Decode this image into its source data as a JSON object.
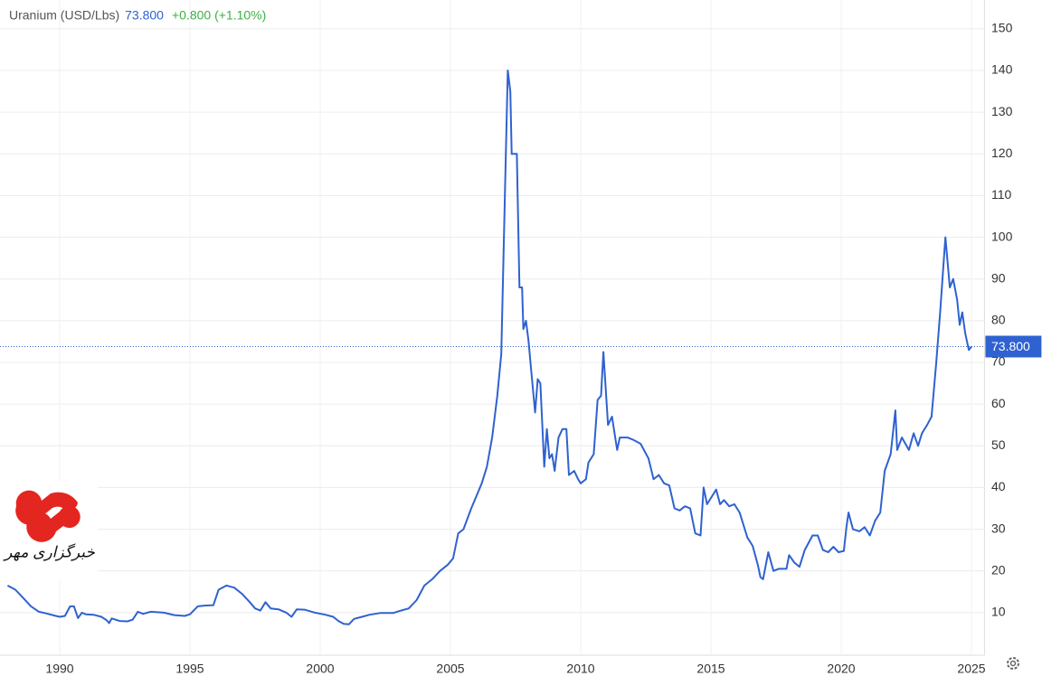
{
  "chart_data": {
    "type": "line",
    "title": "Uranium (USD/Lbs)",
    "last_price": {
      "value": 73.8,
      "label": "73.800"
    },
    "change": "+0.800 (+1.10%)",
    "watermark": "خبرگزاری مهر",
    "xlim": [
      1988,
      2025.5
    ],
    "xticks": [
      1990,
      1995,
      2000,
      2005,
      2010,
      2015,
      2020,
      2025
    ],
    "ylim": [
      0,
      155
    ],
    "yticks": [
      10,
      20,
      30,
      40,
      50,
      60,
      70,
      80,
      90,
      100,
      110,
      120,
      130,
      140,
      150
    ],
    "grid": true,
    "series": [
      {
        "name": "Uranium (USD/Lbs)",
        "color": "#2f62d0",
        "x": [
          1988.0,
          1988.3,
          1988.6,
          1988.9,
          1989.2,
          1989.5,
          1989.8,
          1990.0,
          1990.2,
          1990.4,
          1990.55,
          1990.7,
          1990.85,
          1991.0,
          1991.3,
          1991.6,
          1991.8,
          1991.9,
          1992.0,
          1992.3,
          1992.6,
          1992.8,
          1993.0,
          1993.2,
          1993.5,
          1994.0,
          1994.4,
          1994.8,
          1995.0,
          1995.3,
          1995.6,
          1995.9,
          1996.1,
          1996.4,
          1996.7,
          1997.0,
          1997.3,
          1997.5,
          1997.7,
          1997.9,
          1998.1,
          1998.4,
          1998.7,
          1998.9,
          1999.1,
          1999.4,
          1999.8,
          2000.2,
          2000.5,
          2000.7,
          2000.9,
          2001.1,
          2001.3,
          2001.6,
          2001.9,
          2002.3,
          2002.8,
          2003.1,
          2003.4,
          2003.7,
          2004.0,
          2004.3,
          2004.6,
          2004.9,
          2005.1,
          2005.3,
          2005.5,
          2005.8,
          2006.0,
          2006.2,
          2006.4,
          2006.6,
          2006.8,
          2006.95,
          2007.1,
          2007.2,
          2007.3,
          2007.35,
          2007.55,
          2007.65,
          2007.75,
          2007.8,
          2007.9,
          2008.0,
          2008.1,
          2008.25,
          2008.35,
          2008.45,
          2008.6,
          2008.7,
          2008.8,
          2008.9,
          2009.0,
          2009.15,
          2009.3,
          2009.45,
          2009.55,
          2009.75,
          2009.9,
          2010.0,
          2010.2,
          2010.3,
          2010.5,
          2010.65,
          2010.78,
          2010.87,
          2011.05,
          2011.2,
          2011.4,
          2011.5,
          2011.8,
          2012.0,
          2012.3,
          2012.6,
          2012.8,
          2013.0,
          2013.2,
          2013.4,
          2013.6,
          2013.8,
          2014.0,
          2014.2,
          2014.4,
          2014.6,
          2014.72,
          2014.85,
          2015.0,
          2015.2,
          2015.35,
          2015.5,
          2015.7,
          2015.9,
          2016.1,
          2016.4,
          2016.6,
          2016.8,
          2016.9,
          2017.0,
          2017.2,
          2017.4,
          2017.6,
          2017.9,
          2018.0,
          2018.2,
          2018.4,
          2018.6,
          2018.9,
          2019.1,
          2019.3,
          2019.5,
          2019.7,
          2019.9,
          2020.1,
          2020.2,
          2020.28,
          2020.45,
          2020.7,
          2020.9,
          2021.1,
          2021.3,
          2021.5,
          2021.67,
          2021.9,
          2022.08,
          2022.15,
          2022.33,
          2022.6,
          2022.78,
          2022.95,
          2023.1,
          2023.3,
          2023.47,
          2023.65,
          2023.8,
          2024.0,
          2024.17,
          2024.3,
          2024.45,
          2024.55,
          2024.65,
          2024.76,
          2024.9,
          2025.0
        ],
        "values": [
          16.5,
          15.5,
          13.5,
          11.5,
          10.2,
          9.8,
          9.3,
          9.0,
          9.2,
          11.5,
          11.5,
          8.7,
          10.0,
          9.6,
          9.5,
          9.0,
          8.2,
          7.5,
          8.6,
          8.0,
          7.9,
          8.3,
          10.2,
          9.7,
          10.2,
          10.0,
          9.4,
          9.2,
          9.6,
          11.5,
          11.7,
          11.8,
          15.5,
          16.5,
          16.0,
          14.5,
          12.5,
          11.0,
          10.5,
          12.5,
          11.0,
          10.8,
          10.0,
          9.0,
          10.8,
          10.7,
          10.0,
          9.5,
          9.0,
          8.0,
          7.3,
          7.2,
          8.5,
          9.0,
          9.5,
          9.9,
          9.9,
          10.5,
          11.0,
          13.0,
          16.5,
          18.0,
          20.0,
          21.5,
          23.0,
          29.0,
          30.0,
          35.0,
          38.0,
          41.0,
          45.0,
          52.0,
          62.0,
          72.0,
          113.0,
          140.0,
          135.0,
          120.0,
          120.0,
          88.0,
          88.0,
          78.0,
          80.0,
          75.0,
          68.0,
          58.0,
          66.0,
          65.0,
          45.0,
          54.0,
          47.0,
          48.0,
          44.0,
          52.0,
          54.0,
          54.0,
          43.0,
          44.0,
          42.0,
          41.0,
          42.0,
          46.0,
          48.0,
          61.0,
          62.0,
          72.5,
          55.0,
          57.0,
          49.0,
          52.0,
          52.0,
          51.5,
          50.5,
          47.0,
          42.0,
          43.0,
          41.0,
          40.5,
          35.0,
          34.5,
          35.5,
          35.0,
          29.0,
          28.5,
          40.0,
          36.0,
          37.5,
          39.5,
          36.0,
          37.0,
          35.5,
          36.0,
          34.0,
          28.0,
          26.0,
          21.5,
          18.5,
          18.0,
          24.5,
          20.0,
          20.5,
          20.5,
          23.8,
          22.0,
          21.0,
          25.0,
          28.5,
          28.5,
          25.0,
          24.5,
          25.8,
          24.5,
          24.8,
          30.5,
          34.0,
          30.0,
          29.5,
          30.5,
          28.5,
          32.0,
          34.0,
          44.0,
          48.0,
          58.5,
          49.0,
          52.0,
          49.0,
          53.0,
          50.0,
          53.0,
          55.0,
          57.0,
          70.0,
          82.0,
          100.0,
          88.0,
          90.0,
          85.0,
          79.0,
          82.0,
          77.0,
          73.0,
          73.8
        ]
      }
    ]
  }
}
